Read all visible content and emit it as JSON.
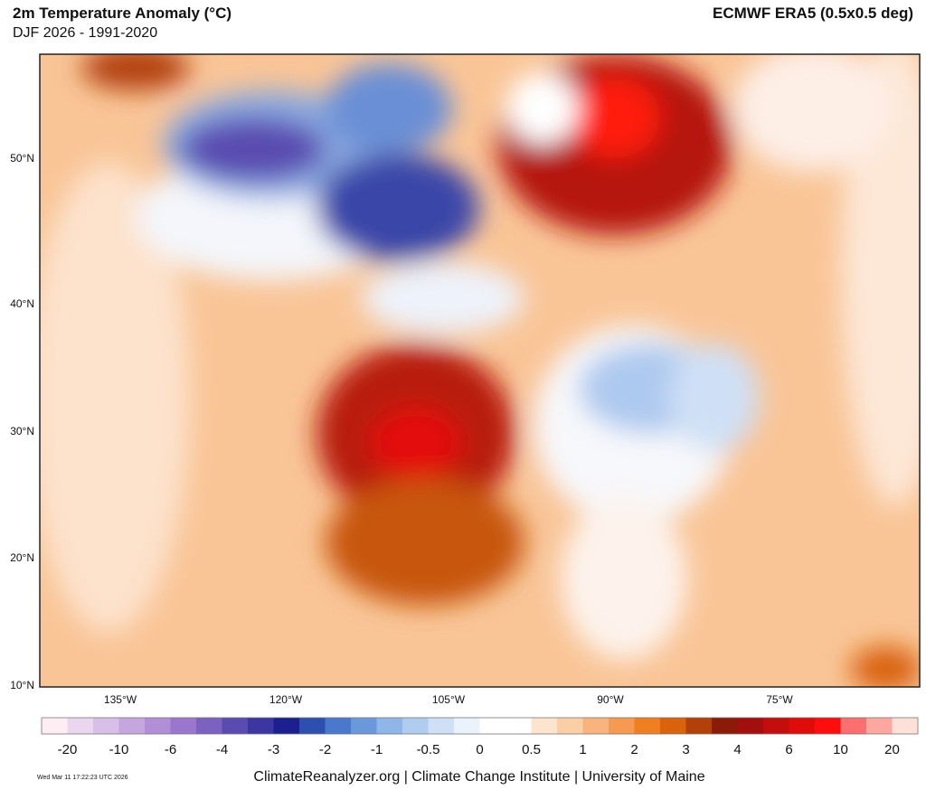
{
  "header": {
    "title": "2m Temperature Anomaly (°C)",
    "subtitle": "DJF 2026 - 1991-2020",
    "dataset": "ECMWF ERA5 (0.5x0.5 deg)"
  },
  "map": {
    "lat_labels": [
      "50°N",
      "40°N",
      "30°N",
      "20°N",
      "10°N"
    ],
    "lon_labels": [
      "135°W",
      "120°W",
      "105°W",
      "90°W",
      "75°W"
    ]
  },
  "colorbar": {
    "colors": [
      "#fdeef4",
      "#ead6ee",
      "#d8bfe7",
      "#c6a6df",
      "#b18ed6",
      "#9b76cd",
      "#7b62c0",
      "#5a4bb1",
      "#3b36a2",
      "#1c1f8f",
      "#2d50b0",
      "#4a78cc",
      "#6b98da",
      "#8fb6e8",
      "#b0cdf0",
      "#cfe0f6",
      "#eaf2fb",
      "#ffffff",
      "#ffffff",
      "#fde4cf",
      "#fbcfa6",
      "#f8b47c",
      "#f59a50",
      "#f07f22",
      "#d9620b",
      "#b34008",
      "#8c1a08",
      "#a30e0e",
      "#c40d0d",
      "#e00b0b",
      "#fd0d0d",
      "#fb6f6f",
      "#fca7a0",
      "#fde0d8"
    ],
    "labels": [
      -20,
      -10,
      -6,
      -4,
      -3,
      -2,
      -1,
      -0.5,
      0,
      0.5,
      1,
      2,
      3,
      4,
      6,
      10,
      20
    ]
  },
  "footer": {
    "credit": "ClimateReanalyzer.org | Climate Change Institute | University of Maine",
    "timestamp": "Wed Mar 11 17:22:23 UTC 2026"
  }
}
